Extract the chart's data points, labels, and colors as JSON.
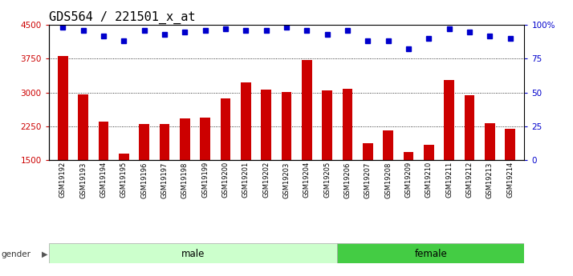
{
  "title": "GDS564 / 221501_x_at",
  "samples": [
    "GSM19192",
    "GSM19193",
    "GSM19194",
    "GSM19195",
    "GSM19196",
    "GSM19197",
    "GSM19198",
    "GSM19199",
    "GSM19200",
    "GSM19201",
    "GSM19202",
    "GSM19203",
    "GSM19204",
    "GSM19205",
    "GSM19206",
    "GSM19207",
    "GSM19208",
    "GSM19209",
    "GSM19210",
    "GSM19211",
    "GSM19212",
    "GSM19213",
    "GSM19214"
  ],
  "counts": [
    3800,
    2960,
    2350,
    1650,
    2300,
    2300,
    2420,
    2450,
    2870,
    3220,
    3060,
    3010,
    3720,
    3050,
    3090,
    1870,
    2160,
    1680,
    1840,
    3280,
    2940,
    2320,
    2200
  ],
  "percentiles": [
    98,
    96,
    92,
    88,
    96,
    93,
    95,
    96,
    97,
    96,
    96,
    98,
    96,
    93,
    96,
    88,
    88,
    82,
    90,
    97,
    95,
    92,
    90
  ],
  "gender": [
    "male",
    "male",
    "male",
    "male",
    "male",
    "male",
    "male",
    "male",
    "male",
    "male",
    "male",
    "male",
    "male",
    "male",
    "female",
    "female",
    "female",
    "female",
    "female",
    "female",
    "female",
    "female",
    "female"
  ],
  "ymin": 1500,
  "ymax": 4500,
  "yticks": [
    1500,
    2250,
    3000,
    3750,
    4500
  ],
  "ytick_labels": [
    "1500",
    "2250",
    "3000",
    "3750",
    "4500"
  ],
  "right_yticks": [
    0,
    25,
    50,
    75,
    100
  ],
  "right_ytick_labels": [
    "0",
    "25",
    "50",
    "75",
    "100%"
  ],
  "bar_color": "#cc0000",
  "dot_color": "#0000cc",
  "male_bg": "#ccffcc",
  "female_bg": "#44cc44",
  "grid_dotted_yvals": [
    2250,
    3000,
    3750
  ],
  "title_fontsize": 11,
  "tick_fontsize": 7.5,
  "sample_fontsize": 6,
  "label_fontsize": 8.5,
  "legend_fontsize": 8
}
